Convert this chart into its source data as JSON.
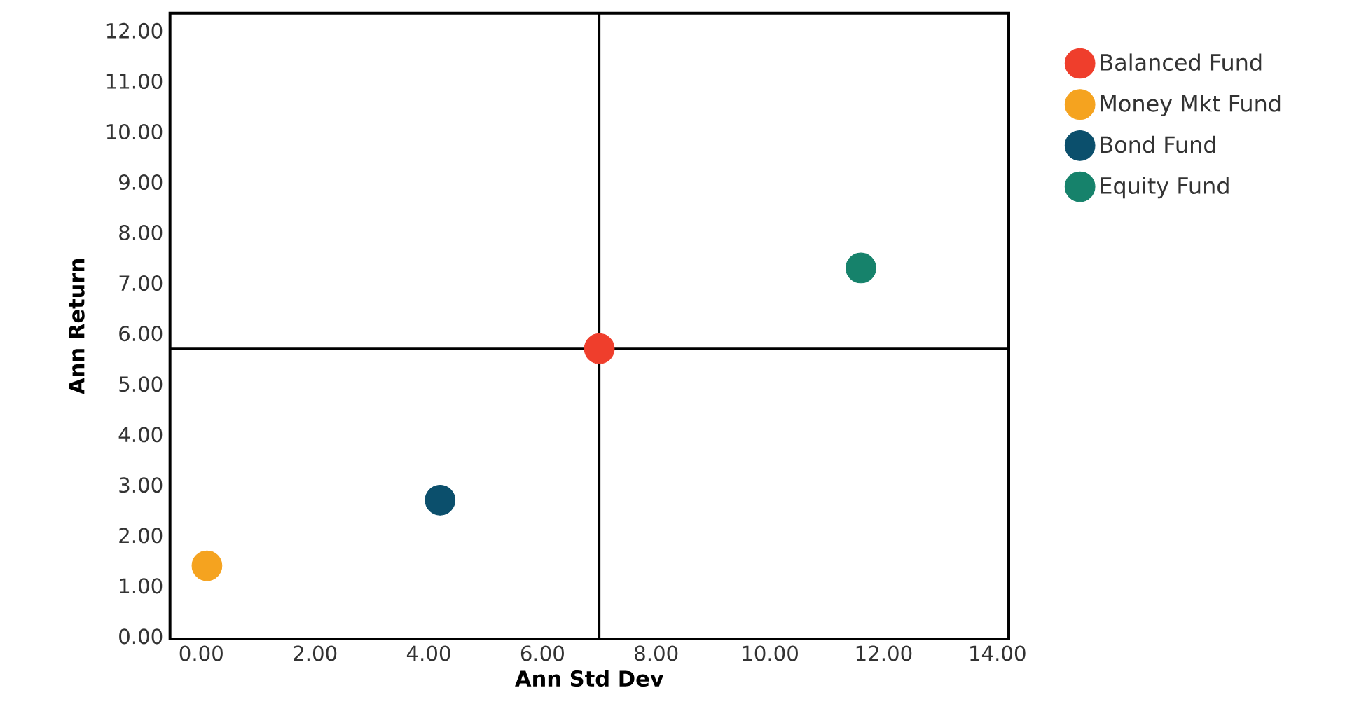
{
  "chart_data": {
    "type": "scatter",
    "xlabel": "Ann Std Dev",
    "ylabel": "Ann Return",
    "xlim": [
      -0.55,
      14.2
    ],
    "ylim": [
      -0.05,
      12.35
    ],
    "xticks": [
      {
        "value": 0,
        "label": "0.00"
      },
      {
        "value": 2,
        "label": "2.00"
      },
      {
        "value": 4,
        "label": "4.00"
      },
      {
        "value": 6,
        "label": "6.00"
      },
      {
        "value": 8,
        "label": "8.00"
      },
      {
        "value": 10,
        "label": "10.00"
      },
      {
        "value": 12,
        "label": "12.00"
      },
      {
        "value": 14,
        "label": "14.00"
      }
    ],
    "yticks": [
      {
        "value": 0,
        "label": "0.00"
      },
      {
        "value": 1,
        "label": "1.00"
      },
      {
        "value": 2,
        "label": "2.00"
      },
      {
        "value": 3,
        "label": "3.00"
      },
      {
        "value": 4,
        "label": "4.00"
      },
      {
        "value": 5,
        "label": "5.00"
      },
      {
        "value": 6,
        "label": "6.00"
      },
      {
        "value": 7,
        "label": "7.00"
      },
      {
        "value": 8,
        "label": "8.00"
      },
      {
        "value": 9,
        "label": "9.00"
      },
      {
        "value": 10,
        "label": "10.00"
      },
      {
        "value": 11,
        "label": "11.00"
      },
      {
        "value": 12,
        "label": "12.00"
      }
    ],
    "series": [
      {
        "name": "Balanced Fund",
        "color": "#ef3e2c",
        "x": [
          7.0
        ],
        "values": [
          5.7
        ]
      },
      {
        "name": "Money Mkt Fund",
        "color": "#f5a31f",
        "x": [
          0.1
        ],
        "values": [
          1.4
        ]
      },
      {
        "name": "Bond Fund",
        "color": "#0b4f6c",
        "x": [
          4.2
        ],
        "values": [
          2.7
        ]
      },
      {
        "name": "Equity Fund",
        "color": "#16826b",
        "x": [
          11.6
        ],
        "values": [
          7.3
        ]
      }
    ],
    "ref_lines": [
      {
        "axis": "x",
        "value": 7.0,
        "color": "#000000"
      },
      {
        "axis": "y",
        "value": 5.7,
        "color": "#000000"
      }
    ],
    "legend": "right"
  }
}
